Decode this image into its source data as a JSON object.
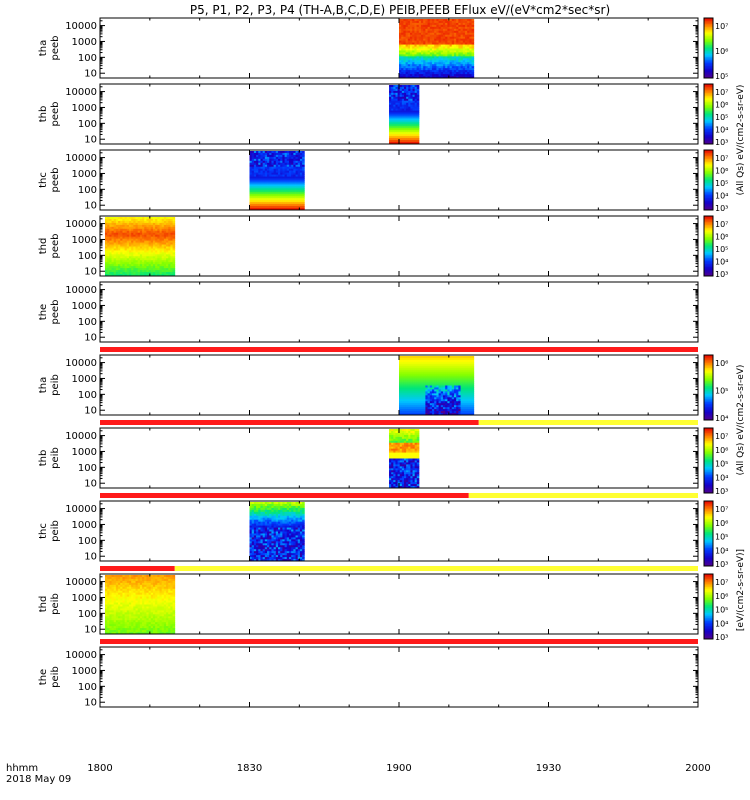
{
  "title": "P5, P1, P2, P3, P4 (TH-A,B,C,D,E) PEIB,PEEB EFlux eV/(eV*cm2*sec*sr)",
  "footer": {
    "time_label": "hhmm",
    "date_label": "2018 May 09"
  },
  "x_axis": {
    "ticks": [
      "1800",
      "1830",
      "1900",
      "1930",
      "2000"
    ],
    "tick_minutes": [
      0,
      30,
      60,
      90,
      120
    ]
  },
  "y_axis": {
    "tick_labels": [
      "10",
      "100",
      "1000",
      "10000"
    ]
  },
  "colors": {
    "bar_red": "#ff1a1a",
    "bar_yellow": "#ffff33"
  },
  "chart_data": {
    "type": "heatmap",
    "x_range_minutes": [
      0,
      120
    ],
    "y_scale": "log",
    "panels": [
      {
        "label1": "tha",
        "label2": "peeb",
        "spans": [
          [
            60,
            75
          ]
        ],
        "style": "electron_hot",
        "bar": null,
        "cbar": [
          "10⁷",
          "10⁶",
          "10⁵"
        ]
      },
      {
        "label1": "thb",
        "label2": "peeb",
        "spans": [
          [
            58,
            64
          ]
        ],
        "style": "electron_bands",
        "bar": null,
        "cbar": [
          "10⁷",
          "10⁶",
          "10⁵",
          "10⁴",
          "10³"
        ]
      },
      {
        "label1": "thc",
        "label2": "peeb",
        "spans": [
          [
            30,
            41
          ]
        ],
        "style": "electron_bands",
        "bar": null,
        "cbar": [
          "10⁷",
          "10⁶",
          "10⁵",
          "10⁴",
          "10³"
        ]
      },
      {
        "label1": "thd",
        "label2": "peeb",
        "spans": [
          [
            1,
            15
          ]
        ],
        "style": "electron_warm",
        "bar": null,
        "cbar": [
          "10⁷",
          "10⁶",
          "10⁵",
          "10⁴",
          "10³"
        ]
      },
      {
        "label1": "the",
        "label2": "peeb",
        "spans": [],
        "style": "empty",
        "bar": {
          "red_end": 120
        },
        "cbar": []
      },
      {
        "label1": "tha",
        "label2": "peib",
        "spans": [
          [
            60,
            75
          ]
        ],
        "style": "ion_a",
        "bar": {
          "red_end": 76
        },
        "cbar": [
          "10⁶",
          "10⁵",
          "10⁴"
        ]
      },
      {
        "label1": "thb",
        "label2": "peib",
        "spans": [
          [
            58,
            64
          ]
        ],
        "style": "ion_b",
        "bar": {
          "red_end": 74
        },
        "cbar": [
          "10⁷",
          "10⁶",
          "10⁵",
          "10⁴",
          "10³"
        ]
      },
      {
        "label1": "thc",
        "label2": "peib",
        "spans": [
          [
            30,
            41
          ]
        ],
        "style": "ion_c",
        "bar": {
          "red_end": 15
        },
        "cbar": [
          "10⁷",
          "10⁶",
          "10⁵",
          "10⁴",
          "10³"
        ]
      },
      {
        "label1": "thd",
        "label2": "peib",
        "spans": [
          [
            1,
            15
          ]
        ],
        "style": "ion_d",
        "bar": {
          "red_end": 120
        },
        "cbar": [
          "10⁷",
          "10⁶",
          "10⁵",
          "10⁴",
          "10³"
        ]
      },
      {
        "label1": "the",
        "label2": "peib",
        "spans": [],
        "style": "empty",
        "bar": null,
        "cbar": []
      }
    ],
    "colorbar_titles": [
      "(All Qs) eV/(cm2-s-sr-eV)",
      "(All Qs) eV/(cm2-s-sr-eV)",
      "[eV/(cm2-s-sr-eV)]"
    ]
  }
}
